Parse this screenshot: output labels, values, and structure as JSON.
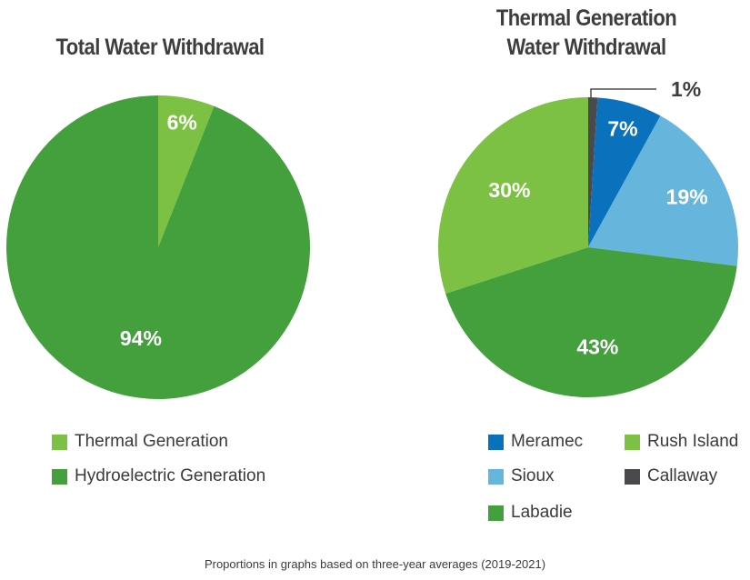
{
  "chart_data": [
    {
      "type": "pie",
      "title": "Total Water Withdrawal",
      "categories": [
        "Thermal Generation",
        "Hydroelectric Generation"
      ],
      "values": [
        6,
        94
      ],
      "labels": [
        "6%",
        "94%"
      ],
      "colors": [
        "#7cc143",
        "#43a03d"
      ],
      "legend": "bottom"
    },
    {
      "type": "pie",
      "title": [
        "Thermal Generation",
        "Water Withdrawal"
      ],
      "categories": [
        "Callaway",
        "Meramec",
        "Sioux",
        "Labadie",
        "Rush Island"
      ],
      "values": [
        1,
        7,
        19,
        43,
        30
      ],
      "labels": [
        "1%",
        "7%",
        "19%",
        "43%",
        "30%"
      ],
      "colors": [
        "#4a4a4c",
        "#0a72bd",
        "#66b5dc",
        "#43a03d",
        "#7cc143"
      ],
      "legend_order": [
        "Meramec",
        "Rush Island",
        "Sioux",
        "Callaway",
        "Labadie"
      ],
      "legend": "bottom"
    }
  ],
  "footnote": "Proportions in graphs based on three-year averages (2019-2021)"
}
